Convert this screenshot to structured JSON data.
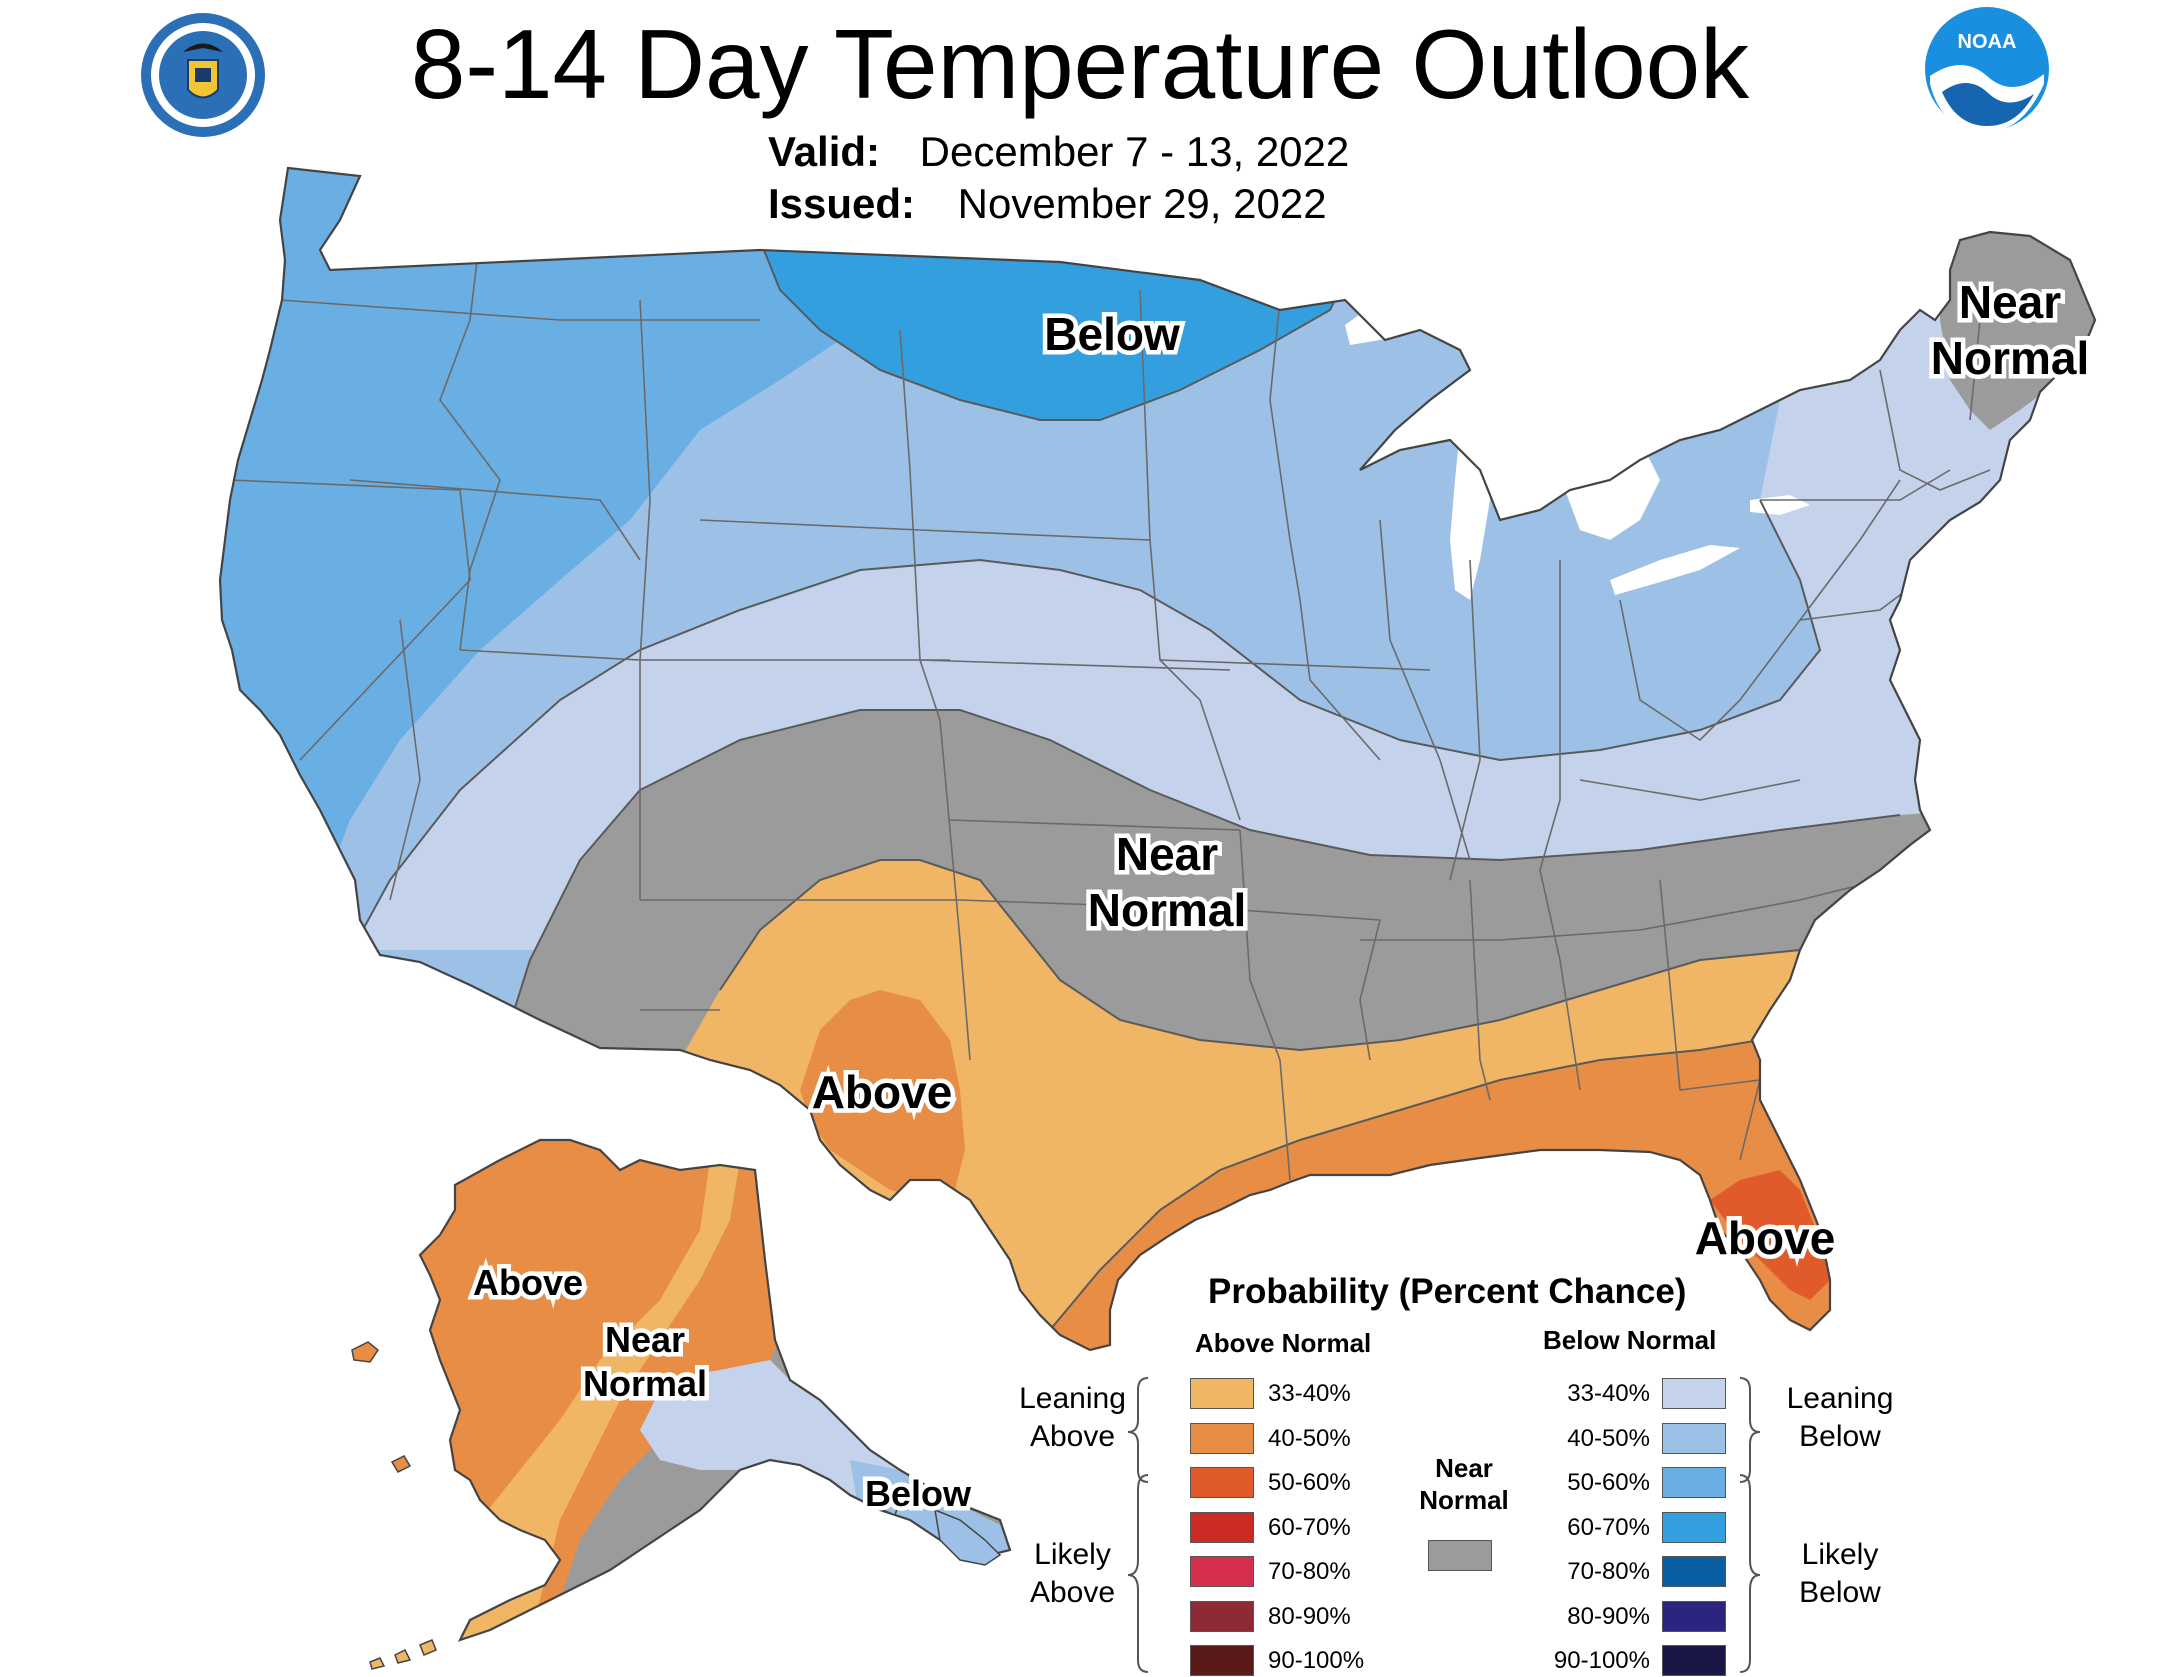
{
  "header": {
    "title": "8-14 Day Temperature Outlook",
    "valid_key": "Valid:",
    "valid_value": "December 7 - 13, 2022",
    "issued_key": "Issued:",
    "issued_value": "November 29, 2022",
    "left_logo": "department-of-commerce-seal",
    "right_logo": "noaa-logo",
    "right_logo_text": "NOAA"
  },
  "map": {
    "labels": {
      "conus_below": "Below",
      "ne_near_line1": "Near",
      "ne_near_line2": "Normal",
      "central_near_line1": "Near",
      "central_near_line2": "Normal",
      "tx_above": "Above",
      "fl_above": "Above",
      "ak_above": "Above",
      "ak_near_line1": "Near",
      "ak_near_line2": "Normal",
      "ak_below": "Below"
    }
  },
  "legend": {
    "title": "Probability (Percent Chance)",
    "above_header": "Above Normal",
    "below_header": "Below Normal",
    "near_line1": "Near",
    "near_line2": "Normal",
    "near_color": "#9b9b9b",
    "leaning_above_line1": "Leaning",
    "leaning_above_line2": "Above",
    "likely_above_line1": "Likely",
    "likely_above_line2": "Above",
    "leaning_below_line1": "Leaning",
    "leaning_below_line2": "Below",
    "likely_below_line1": "Likely",
    "likely_below_line2": "Below",
    "above": [
      {
        "range": "33-40%",
        "color": "#f0b665"
      },
      {
        "range": "40-50%",
        "color": "#e88d46"
      },
      {
        "range": "50-60%",
        "color": "#e05a2b"
      },
      {
        "range": "60-70%",
        "color": "#cc2b25"
      },
      {
        "range": "70-80%",
        "color": "#d4304d"
      },
      {
        "range": "80-90%",
        "color": "#8e2a35"
      },
      {
        "range": "90-100%",
        "color": "#5a1a1a"
      }
    ],
    "below": [
      {
        "range": "33-40%",
        "color": "#c4d2eb"
      },
      {
        "range": "40-50%",
        "color": "#9dc1e6"
      },
      {
        "range": "50-60%",
        "color": "#6aafe3"
      },
      {
        "range": "60-70%",
        "color": "#349fdf"
      },
      {
        "range": "70-80%",
        "color": "#0a5fa3"
      },
      {
        "range": "80-90%",
        "color": "#2b2580"
      },
      {
        "range": "90-100%",
        "color": "#1a1648"
      }
    ]
  }
}
